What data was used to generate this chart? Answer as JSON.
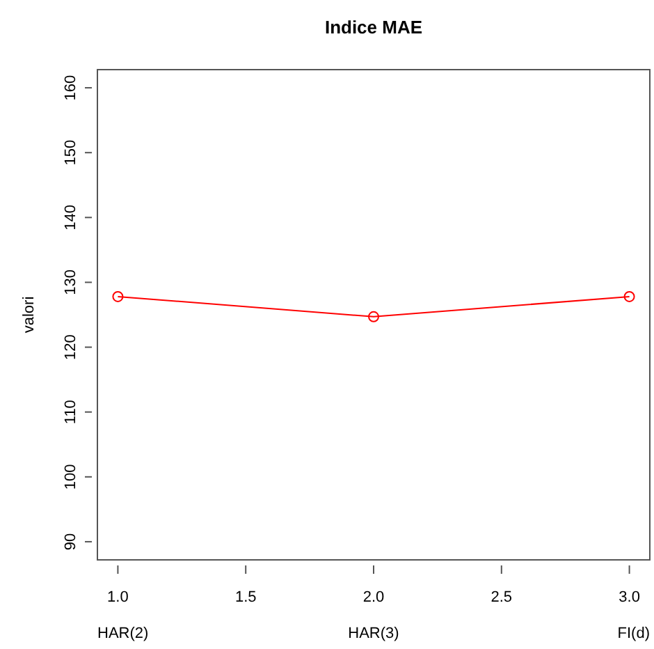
{
  "chart_data": {
    "type": "line",
    "title": "Indice MAE",
    "ylabel": "valori",
    "x": [
      1,
      2,
      3
    ],
    "series": [
      {
        "color": "#ff0000",
        "values": [
          127.8,
          124.7,
          127.8
        ]
      }
    ],
    "xlim": [
      0.92,
      3.08
    ],
    "xticks": [
      {
        "value": 1,
        "label": "1.0"
      },
      {
        "value": 1.5,
        "label": "1.5"
      },
      {
        "value": 2,
        "label": "2.0"
      },
      {
        "value": 2.5,
        "label": "2.5"
      },
      {
        "value": 3,
        "label": "3.0"
      }
    ],
    "ylim": [
      87.2,
      162.8
    ],
    "yticks": [
      90,
      100,
      110,
      120,
      130,
      140,
      150,
      160
    ],
    "annotations": [
      "HAR(2)",
      "HAR(3)",
      "FI(d)"
    ],
    "marker": "circle",
    "line_style": "solid",
    "grid": false
  }
}
